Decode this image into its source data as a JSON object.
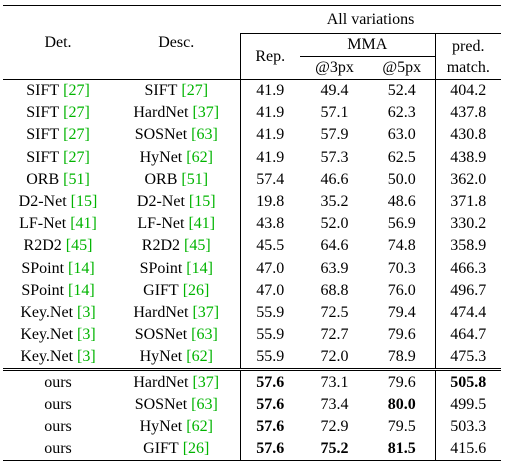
{
  "table": {
    "header": {
      "det": "Det.",
      "desc": "Desc.",
      "all_variations": "All variations",
      "rep": "Rep.",
      "mma": "MMA",
      "at3": "@3px",
      "at5": "@5px",
      "pred": "pred.",
      "match": "match."
    },
    "sections": [
      [
        {
          "det": "SIFT",
          "det_ref": "[27]",
          "desc": "SIFT",
          "desc_ref": "[27]",
          "cells": [
            "41.9",
            "49.4",
            "52.4",
            "404.2"
          ],
          "bold": []
        },
        {
          "det": "SIFT",
          "det_ref": "[27]",
          "desc": "HardNet",
          "desc_ref": "[37]",
          "cells": [
            "41.9",
            "57.1",
            "62.3",
            "437.8"
          ],
          "bold": []
        },
        {
          "det": "SIFT",
          "det_ref": "[27]",
          "desc": "SOSNet",
          "desc_ref": "[63]",
          "cells": [
            "41.9",
            "57.9",
            "63.0",
            "430.8"
          ],
          "bold": []
        },
        {
          "det": "SIFT",
          "det_ref": "[27]",
          "desc": "HyNet",
          "desc_ref": "[62]",
          "cells": [
            "41.9",
            "57.3",
            "62.5",
            "438.9"
          ],
          "bold": []
        },
        {
          "det": "ORB",
          "det_ref": "[51]",
          "desc": "ORB",
          "desc_ref": "[51]",
          "cells": [
            "57.4",
            "46.6",
            "50.0",
            "362.0"
          ],
          "bold": []
        },
        {
          "det": "D2-Net",
          "det_ref": "[15]",
          "desc": "D2-Net",
          "desc_ref": "[15]",
          "cells": [
            "19.8",
            "35.2",
            "48.6",
            "371.8"
          ],
          "bold": []
        },
        {
          "det": "LF-Net",
          "det_ref": "[41]",
          "desc": "LF-Net",
          "desc_ref": "[41]",
          "cells": [
            "43.8",
            "52.0",
            "56.9",
            "330.2"
          ],
          "bold": []
        },
        {
          "det": "R2D2",
          "det_ref": "[45]",
          "desc": "R2D2",
          "desc_ref": "[45]",
          "cells": [
            "45.5",
            "64.6",
            "74.8",
            "358.9"
          ],
          "bold": []
        },
        {
          "det": "SPoint",
          "det_ref": "[14]",
          "desc": "SPoint",
          "desc_ref": "[14]",
          "cells": [
            "47.0",
            "63.9",
            "70.3",
            "466.3"
          ],
          "bold": []
        },
        {
          "det": "SPoint",
          "det_ref": "[14]",
          "desc": "GIFT",
          "desc_ref": "[26]",
          "cells": [
            "47.0",
            "68.8",
            "76.0",
            "496.7"
          ],
          "bold": []
        },
        {
          "det": "Key.Net",
          "det_ref": "[3]",
          "desc": "HardNet",
          "desc_ref": "[37]",
          "cells": [
            "55.9",
            "72.5",
            "79.4",
            "474.4"
          ],
          "bold": []
        },
        {
          "det": "Key.Net",
          "det_ref": "[3]",
          "desc": "SOSNet",
          "desc_ref": "[63]",
          "cells": [
            "55.9",
            "72.7",
            "79.6",
            "464.7"
          ],
          "bold": []
        },
        {
          "det": "Key.Net",
          "det_ref": "[3]",
          "desc": "HyNet",
          "desc_ref": "[62]",
          "cells": [
            "55.9",
            "72.0",
            "78.9",
            "475.3"
          ],
          "bold": []
        }
      ],
      [
        {
          "det": "ours",
          "desc": "HardNet",
          "desc_ref": "[37]",
          "cells": [
            "57.6",
            "73.1",
            "79.6",
            "505.8"
          ],
          "bold": [
            0,
            3
          ]
        },
        {
          "det": "ours",
          "desc": "SOSNet",
          "desc_ref": "[63]",
          "cells": [
            "57.6",
            "73.4",
            "80.0",
            "499.5"
          ],
          "bold": [
            0,
            2
          ]
        },
        {
          "det": "ours",
          "desc": "HyNet",
          "desc_ref": "[62]",
          "cells": [
            "57.6",
            "72.9",
            "79.5",
            "503.3"
          ],
          "bold": [
            0
          ]
        },
        {
          "det": "ours",
          "desc": "GIFT",
          "desc_ref": "[26]",
          "cells": [
            "57.6",
            "75.2",
            "81.5",
            "415.6"
          ],
          "bold": [
            0,
            1,
            2
          ]
        }
      ]
    ]
  }
}
